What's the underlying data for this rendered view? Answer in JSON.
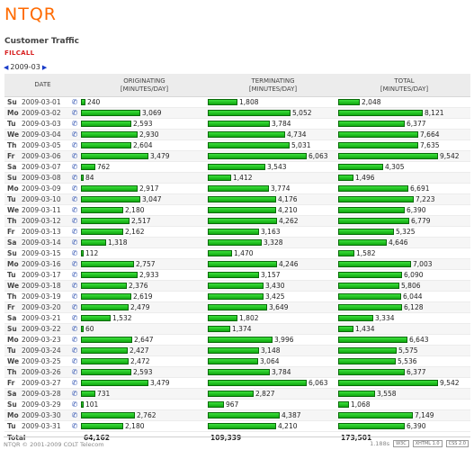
{
  "header": {
    "logo": "NTQR",
    "subtitle": "Customer Traffic",
    "filcall": "FILCALL",
    "month": "2009-03"
  },
  "table": {
    "columns": {
      "date": "DATE",
      "originating": "ORIGINATING\n[MINUTES/DAY]",
      "terminating": "TERMINATING\n[MINUTES/DAY]",
      "total": "TOTAL\n[MINUTES/DAY]"
    },
    "rows": [
      {
        "dow": "Su",
        "date": "2009-03-01",
        "orig": 240,
        "term": 1808,
        "total": 2048
      },
      {
        "dow": "Mo",
        "date": "2009-03-02",
        "orig": 3069,
        "term": 5052,
        "total": 8121
      },
      {
        "dow": "Tu",
        "date": "2009-03-03",
        "orig": 2593,
        "term": 3784,
        "total": 6377
      },
      {
        "dow": "We",
        "date": "2009-03-04",
        "orig": 2930,
        "term": 4734,
        "total": 7664
      },
      {
        "dow": "Th",
        "date": "2009-03-05",
        "orig": 2604,
        "term": 5031,
        "total": 7635
      },
      {
        "dow": "Fr",
        "date": "2009-03-06",
        "orig": 3479,
        "term": 6063,
        "total": 9542
      },
      {
        "dow": "Sa",
        "date": "2009-03-07",
        "orig": 762,
        "term": 3543,
        "total": 4305
      },
      {
        "dow": "Su",
        "date": "2009-03-08",
        "orig": 84,
        "term": 1412,
        "total": 1496
      },
      {
        "dow": "Mo",
        "date": "2009-03-09",
        "orig": 2917,
        "term": 3774,
        "total": 6691
      },
      {
        "dow": "Tu",
        "date": "2009-03-10",
        "orig": 3047,
        "term": 4176,
        "total": 7223
      },
      {
        "dow": "We",
        "date": "2009-03-11",
        "orig": 2180,
        "term": 4210,
        "total": 6390
      },
      {
        "dow": "Th",
        "date": "2009-03-12",
        "orig": 2517,
        "term": 4262,
        "total": 6779
      },
      {
        "dow": "Fr",
        "date": "2009-03-13",
        "orig": 2162,
        "term": 3163,
        "total": 5325
      },
      {
        "dow": "Sa",
        "date": "2009-03-14",
        "orig": 1318,
        "term": 3328,
        "total": 4646
      },
      {
        "dow": "Su",
        "date": "2009-03-15",
        "orig": 112,
        "term": 1470,
        "total": 1582
      },
      {
        "dow": "Mo",
        "date": "2009-03-16",
        "orig": 2757,
        "term": 4246,
        "total": 7003
      },
      {
        "dow": "Tu",
        "date": "2009-03-17",
        "orig": 2933,
        "term": 3157,
        "total": 6090
      },
      {
        "dow": "We",
        "date": "2009-03-18",
        "orig": 2376,
        "term": 3430,
        "total": 5806
      },
      {
        "dow": "Th",
        "date": "2009-03-19",
        "orig": 2619,
        "term": 3425,
        "total": 6044
      },
      {
        "dow": "Fr",
        "date": "2009-03-20",
        "orig": 2479,
        "term": 3649,
        "total": 6128
      },
      {
        "dow": "Sa",
        "date": "2009-03-21",
        "orig": 1532,
        "term": 1802,
        "total": 3334
      },
      {
        "dow": "Su",
        "date": "2009-03-22",
        "orig": 60,
        "term": 1374,
        "total": 1434
      },
      {
        "dow": "Mo",
        "date": "2009-03-23",
        "orig": 2647,
        "term": 3996,
        "total": 6643
      },
      {
        "dow": "Tu",
        "date": "2009-03-24",
        "orig": 2427,
        "term": 3148,
        "total": 5575
      },
      {
        "dow": "We",
        "date": "2009-03-25",
        "orig": 2472,
        "term": 3064,
        "total": 5536
      },
      {
        "dow": "Th",
        "date": "2009-03-26",
        "orig": 2593,
        "term": 3784,
        "total": 6377
      },
      {
        "dow": "Fr",
        "date": "2009-03-27",
        "orig": 3479,
        "term": 6063,
        "total": 9542
      },
      {
        "dow": "Sa",
        "date": "2009-03-28",
        "orig": 731,
        "term": 2827,
        "total": 3558
      },
      {
        "dow": "Su",
        "date": "2009-03-29",
        "orig": 101,
        "term": 967,
        "total": 1068
      },
      {
        "dow": "Mo",
        "date": "2009-03-30",
        "orig": 2762,
        "term": 4387,
        "total": 7149
      },
      {
        "dow": "Tu",
        "date": "2009-03-31",
        "orig": 2180,
        "term": 4210,
        "total": 6390
      }
    ],
    "totals": {
      "label": "Total",
      "orig": "64,162",
      "term": "109,339",
      "total": "173,501"
    }
  },
  "footer": {
    "copyright": "NTQR © 2001-2009 COLT Telecom",
    "time": "1.188s",
    "badge_w3c": "W3C",
    "badge_xhtml": "XHTML 1.0",
    "badge_css": "CSS 2.0"
  },
  "icons": {
    "phone": "phone-icon",
    "nav_prev": "triangle-left-icon",
    "nav_next": "triangle-right-icon"
  },
  "colors": {
    "logo": "#ff6a00",
    "bar": "#19c419",
    "filcall": "#d82020",
    "nav": "#1a3cc8"
  }
}
